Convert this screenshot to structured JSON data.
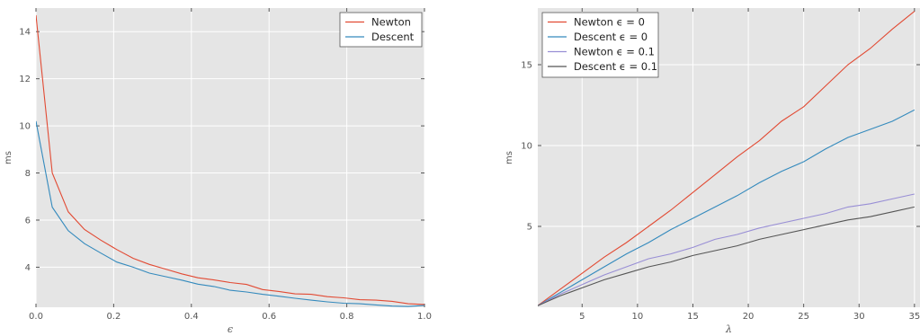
{
  "chart_data": [
    {
      "type": "line",
      "xlabel": "ϵ",
      "ylabel": "ms",
      "xlim": [
        0.0,
        1.0
      ],
      "ylim": [
        2.3,
        15.0
      ],
      "xticks": [
        "0.0",
        "0.2",
        "0.4",
        "0.6",
        "0.8",
        "1.0"
      ],
      "xtick_values": [
        0.0,
        0.2,
        0.4,
        0.6,
        0.8,
        1.0
      ],
      "yticks": [
        "4",
        "6",
        "8",
        "10",
        "12",
        "14"
      ],
      "ytick_values": [
        4,
        6,
        8,
        10,
        12,
        14
      ],
      "grid": true,
      "legend_position": "top-right",
      "x": [
        0.0,
        0.042,
        0.083,
        0.125,
        0.167,
        0.208,
        0.25,
        0.292,
        0.333,
        0.375,
        0.417,
        0.458,
        0.5,
        0.542,
        0.583,
        0.625,
        0.667,
        0.708,
        0.75,
        0.792,
        0.833,
        0.875,
        0.917,
        0.958,
        1.0
      ],
      "series": [
        {
          "name": "Newton",
          "color": "#e24a33",
          "values": [
            14.7,
            8.0,
            6.35,
            5.6,
            5.15,
            4.75,
            4.38,
            4.12,
            3.92,
            3.72,
            3.55,
            3.46,
            3.35,
            3.27,
            3.05,
            2.97,
            2.87,
            2.85,
            2.75,
            2.7,
            2.62,
            2.6,
            2.55,
            2.45,
            2.42
          ]
        },
        {
          "name": "Descent",
          "color": "#348abd",
          "values": [
            10.2,
            6.55,
            5.55,
            5.0,
            4.6,
            4.22,
            4.0,
            3.75,
            3.6,
            3.45,
            3.28,
            3.18,
            3.02,
            2.95,
            2.85,
            2.77,
            2.68,
            2.6,
            2.53,
            2.47,
            2.45,
            2.4,
            2.35,
            2.33,
            2.38
          ]
        }
      ]
    },
    {
      "type": "line",
      "xlabel": "λ",
      "ylabel": "ms",
      "xlim": [
        1,
        35.5
      ],
      "ylim": [
        0,
        18.5
      ],
      "xticks": [
        "5",
        "10",
        "15",
        "20",
        "25",
        "30",
        "35"
      ],
      "xtick_values": [
        5,
        10,
        15,
        20,
        25,
        30,
        35
      ],
      "yticks": [
        "5",
        "10",
        "15"
      ],
      "ytick_values": [
        5,
        10,
        15
      ],
      "grid": true,
      "legend_position": "top-left",
      "x": [
        1,
        3,
        5,
        7,
        9,
        11,
        13,
        15,
        17,
        19,
        21,
        23,
        25,
        27,
        29,
        31,
        33,
        35
      ],
      "series": [
        {
          "name": "Newton ϵ = 0",
          "color": "#e24a33",
          "values": [
            0.1,
            1.1,
            2.1,
            3.1,
            4.0,
            5.0,
            6.0,
            7.1,
            8.2,
            9.3,
            10.3,
            11.5,
            12.4,
            13.7,
            15.0,
            16.0,
            17.2,
            18.3
          ]
        },
        {
          "name": "Descent ϵ = 0",
          "color": "#348abd",
          "values": [
            0.1,
            0.9,
            1.7,
            2.5,
            3.3,
            4.0,
            4.8,
            5.5,
            6.2,
            6.9,
            7.7,
            8.4,
            9.0,
            9.8,
            10.5,
            11.0,
            11.5,
            12.2
          ]
        },
        {
          "name": "Newton ϵ = 0.1",
          "color": "#988ed5",
          "values": [
            0.1,
            0.8,
            1.4,
            2.0,
            2.5,
            3.0,
            3.3,
            3.7,
            4.2,
            4.5,
            4.9,
            5.2,
            5.5,
            5.8,
            6.2,
            6.4,
            6.7,
            7.0
          ]
        },
        {
          "name": "Descent ϵ = 0.1",
          "color": "#555555",
          "values": [
            0.1,
            0.7,
            1.2,
            1.7,
            2.1,
            2.5,
            2.8,
            3.2,
            3.5,
            3.8,
            4.2,
            4.5,
            4.8,
            5.1,
            5.4,
            5.6,
            5.9,
            6.2
          ]
        }
      ]
    }
  ]
}
